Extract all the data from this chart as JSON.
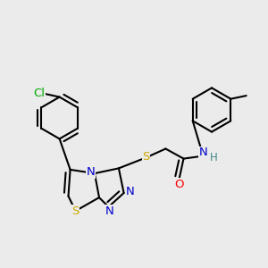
{
  "background_color": "#ebebeb",
  "atom_colors": {
    "C": "#000000",
    "N": "#0000cc",
    "S": "#ccaa00",
    "O": "#ff0000",
    "Cl": "#00aa00",
    "H": "#448888"
  },
  "bond_color": "#000000",
  "bond_width": 1.5,
  "font_size_atoms": 9.5,
  "font_size_h": 8.5
}
